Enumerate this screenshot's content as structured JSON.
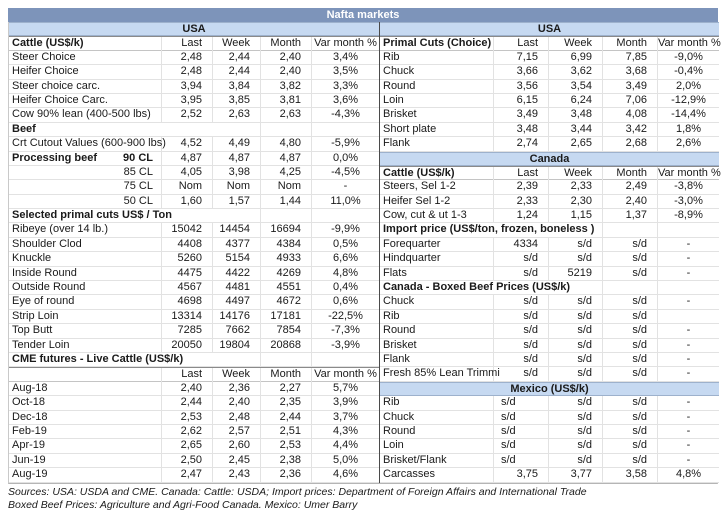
{
  "title": "Nafta markets",
  "colors": {
    "title_bg": "#7d94ba",
    "section_bg": "#c6d9f1"
  },
  "footer": {
    "line1": "Sources: USA: USDA and CME. Canada: Cattle: USDA; Import prices: Department of Foreign Affairs and International Trade",
    "line2": "Boxed Beef Prices: Agriculture and Agri-Food Canada. Mexico: Umer Barry"
  },
  "left": {
    "rows": [
      {
        "t": "region",
        "label": "USA"
      },
      {
        "t": "cols",
        "label": "Cattle (US$/k)",
        "last": "Last",
        "week": "Week",
        "month": "Month",
        "var": "Var month %"
      },
      {
        "t": "data",
        "label": "Steer Choice",
        "last": "2,48",
        "week": "2,44",
        "month": "2,40",
        "var": "3,4%"
      },
      {
        "t": "data",
        "label": "Heifer Choice",
        "last": "2,48",
        "week": "2,44",
        "month": "2,40",
        "var": "3,5%"
      },
      {
        "t": "data",
        "label": "Steer choice carc.",
        "last": "3,94",
        "week": "3,84",
        "month": "3,82",
        "var": "3,3%"
      },
      {
        "t": "data",
        "label": "Heifer Choice Carc.",
        "last": "3,95",
        "week": "3,85",
        "month": "3,81",
        "var": "3,6%"
      },
      {
        "t": "data",
        "label": "Cow 90% lean (400-500 lbs)",
        "last": "2,52",
        "week": "2,63",
        "month": "2,63",
        "var": "-4,3%"
      },
      {
        "t": "bold",
        "label": "Beef"
      },
      {
        "t": "data",
        "label": "Crt Cutout Values (600-900 lbs)",
        "last": "4,52",
        "week": "4,49",
        "month": "4,80",
        "var": "-5,9%"
      },
      {
        "t": "data",
        "label": "Processing beef",
        "boldLabel": true,
        "sub": "90 CL",
        "last": "4,87",
        "week": "4,87",
        "month": "4,87",
        "var": "0,0%"
      },
      {
        "t": "data",
        "label": "",
        "sub": "85 CL",
        "last": "4,05",
        "week": "3,98",
        "month": "4,25",
        "var": "-4,5%"
      },
      {
        "t": "data",
        "label": "",
        "sub": "75 CL",
        "last": "Nom",
        "week": "Nom",
        "month": "Nom",
        "var": "-"
      },
      {
        "t": "data",
        "label": "",
        "sub": "50 CL",
        "last": "1,60",
        "week": "1,57",
        "month": "1,44",
        "var": "11,0%"
      },
      {
        "t": "bold",
        "label": "Selected primal cuts US$ / Ton"
      },
      {
        "t": "data",
        "label": "Ribeye (over 14 lb.)",
        "last": "15042",
        "week": "14454",
        "month": "16694",
        "var": "-9,9%"
      },
      {
        "t": "data",
        "label": "Shoulder Clod",
        "last": "4408",
        "week": "4377",
        "month": "4384",
        "var": "0,5%"
      },
      {
        "t": "data",
        "label": "Knuckle",
        "last": "5260",
        "week": "5154",
        "month": "4933",
        "var": "6,6%"
      },
      {
        "t": "data",
        "label": "Inside Round",
        "last": "4475",
        "week": "4422",
        "month": "4269",
        "var": "4,8%"
      },
      {
        "t": "data",
        "label": "Outside Round",
        "last": "4567",
        "week": "4481",
        "month": "4551",
        "var": "0,4%"
      },
      {
        "t": "data",
        "label": "Eye of round",
        "last": "4698",
        "week": "4497",
        "month": "4672",
        "var": "0,6%"
      },
      {
        "t": "data",
        "label": "Strip Loin",
        "last": "13314",
        "week": "14176",
        "month": "17181",
        "var": "-22,5%"
      },
      {
        "t": "data",
        "label": "Top Butt",
        "last": "7285",
        "week": "7662",
        "month": "7854",
        "var": "-7,3%"
      },
      {
        "t": "data",
        "label": "Tender Loin",
        "last": "20050",
        "week": "19804",
        "month": "20868",
        "var": "-3,9%"
      },
      {
        "t": "bold",
        "label": "CME futures - Live Cattle (US$/k)"
      },
      {
        "t": "cols",
        "label": "",
        "last": "Last",
        "week": "Week",
        "month": "Month",
        "var": "Var month %"
      },
      {
        "t": "data",
        "label": "Aug-18",
        "last": "2,40",
        "week": "2,36",
        "month": "2,27",
        "var": "5,7%"
      },
      {
        "t": "data",
        "label": "Oct-18",
        "last": "2,44",
        "week": "2,40",
        "month": "2,35",
        "var": "3,9%"
      },
      {
        "t": "data",
        "label": "Dec-18",
        "last": "2,53",
        "week": "2,48",
        "month": "2,44",
        "var": "3,7%"
      },
      {
        "t": "data",
        "label": "Feb-19",
        "last": "2,62",
        "week": "2,57",
        "month": "2,51",
        "var": "4,3%"
      },
      {
        "t": "data",
        "label": "Apr-19",
        "last": "2,65",
        "week": "2,60",
        "month": "2,53",
        "var": "4,4%"
      },
      {
        "t": "data",
        "label": "Jun-19",
        "last": "2,50",
        "week": "2,45",
        "month": "2,38",
        "var": "5,0%"
      },
      {
        "t": "data",
        "label": "Aug-19",
        "last": "2,47",
        "week": "2,43",
        "month": "2,36",
        "var": "4,6%"
      }
    ]
  },
  "right": {
    "rows": [
      {
        "t": "region",
        "label": "USA"
      },
      {
        "t": "cols",
        "label": "Primal Cuts (Choice)",
        "last": "Last",
        "week": "Week",
        "month": "Month",
        "var": "Var month %"
      },
      {
        "t": "data",
        "label": "Rib",
        "last": "7,15",
        "week": "6,99",
        "month": "7,85",
        "var": "-9,0%"
      },
      {
        "t": "data",
        "label": "Chuck",
        "last": "3,66",
        "week": "3,62",
        "month": "3,68",
        "var": "-0,4%"
      },
      {
        "t": "data",
        "label": "Round",
        "last": "3,56",
        "week": "3,54",
        "month": "3,49",
        "var": "2,0%"
      },
      {
        "t": "data",
        "label": "Loin",
        "last": "6,15",
        "week": "6,24",
        "month": "7,06",
        "var": "-12,9%"
      },
      {
        "t": "data",
        "label": "Brisket",
        "last": "3,49",
        "week": "3,48",
        "month": "4,08",
        "var": "-14,4%"
      },
      {
        "t": "data",
        "label": "Short plate",
        "last": "3,48",
        "week": "3,44",
        "month": "3,42",
        "var": "1,8%"
      },
      {
        "t": "data",
        "label": "Flank",
        "last": "2,74",
        "week": "2,65",
        "month": "2,68",
        "var": "2,6%"
      },
      {
        "t": "region",
        "label": "Canada"
      },
      {
        "t": "cols",
        "label": "Cattle (US$/k)",
        "last": "Last",
        "week": "Week",
        "month": "Month",
        "var": "Var month %"
      },
      {
        "t": "data",
        "label": "Steers, Sel 1-2",
        "last": "2,39",
        "week": "2,33",
        "month": "2,49",
        "var": "-3,8%"
      },
      {
        "t": "data",
        "label": "Heifer Sel 1-2",
        "last": "2,33",
        "week": "2,30",
        "month": "2,40",
        "var": "-3,0%"
      },
      {
        "t": "data",
        "label": "Cow, cut & ut 1-3",
        "last": "1,24",
        "week": "1,15",
        "month": "1,37",
        "var": "-8,9%"
      },
      {
        "t": "bold",
        "label": "Import price (US$/ton, frozen, boneless )"
      },
      {
        "t": "data",
        "label": "Forequarter",
        "last": "4334",
        "week": "s/d",
        "month": "s/d",
        "var": "-"
      },
      {
        "t": "data",
        "label": "Hindquarter",
        "last": "s/d",
        "week": "s/d",
        "month": "s/d",
        "var": "-"
      },
      {
        "t": "data",
        "label": "Flats",
        "last": "s/d",
        "week": "5219",
        "month": "s/d",
        "var": "-"
      },
      {
        "t": "bold",
        "label": "Canada - Boxed Beef Prices (US$/k)"
      },
      {
        "t": "data",
        "label": "Chuck",
        "last": "s/d",
        "week": "s/d",
        "month": "s/d",
        "var": "-"
      },
      {
        "t": "data",
        "label": "Rib",
        "last": "s/d",
        "week": "s/d",
        "month": "s/d",
        "var": ""
      },
      {
        "t": "data",
        "label": "Round",
        "last": "s/d",
        "week": "s/d",
        "month": "s/d",
        "var": "-"
      },
      {
        "t": "data",
        "label": "Brisket",
        "last": "s/d",
        "week": "s/d",
        "month": "s/d",
        "var": "-"
      },
      {
        "t": "data",
        "label": "Flank",
        "last": "s/d",
        "week": "s/d",
        "month": "s/d",
        "var": "-"
      },
      {
        "t": "data",
        "label": "Fresh 85% Lean Trimmi",
        "last": "s/d",
        "week": "s/d",
        "month": "s/d",
        "var": "-"
      },
      {
        "t": "region",
        "label": "Mexico (US$/k)"
      },
      {
        "t": "data",
        "label": "Rib",
        "last": "s/d",
        "lastLeft": true,
        "week": "s/d",
        "month": "s/d",
        "var": "-"
      },
      {
        "t": "data",
        "label": "Chuck",
        "last": "s/d",
        "lastLeft": true,
        "week": "s/d",
        "month": "s/d",
        "var": "-"
      },
      {
        "t": "data",
        "label": "Round",
        "last": "s/d",
        "lastLeft": true,
        "week": "s/d",
        "month": "s/d",
        "var": "-"
      },
      {
        "t": "data",
        "label": "Loin",
        "last": "s/d",
        "lastLeft": true,
        "week": "s/d",
        "month": "s/d",
        "var": "-"
      },
      {
        "t": "data",
        "label": "Brisket/Flank",
        "last": "s/d",
        "lastLeft": true,
        "week": "s/d",
        "month": "s/d",
        "var": "-"
      },
      {
        "t": "data",
        "label": "Carcasses",
        "last": "3,75",
        "week": "3,77",
        "month": "3,58",
        "var": "4,8%"
      }
    ]
  }
}
